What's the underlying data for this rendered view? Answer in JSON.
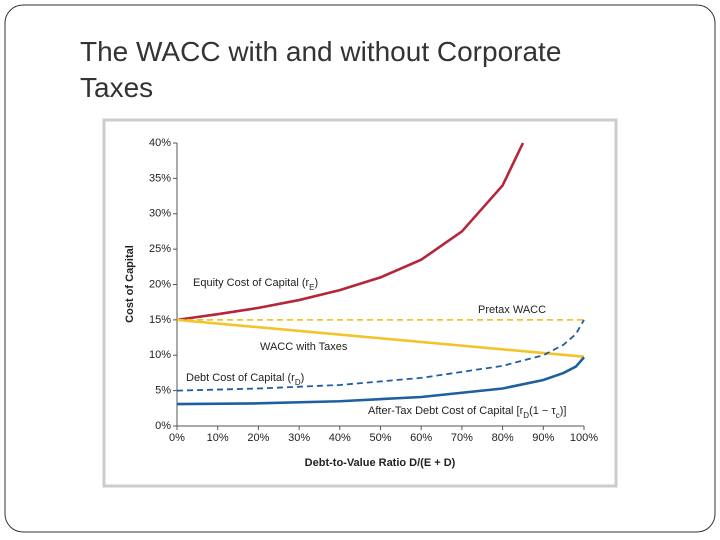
{
  "slide_title": "The WACC with and without Corporate Taxes",
  "chart_data": {
    "type": "line",
    "xlabel": "Debt-to-Value Ratio D/(E + D)",
    "ylabel": "Cost of Capital",
    "xlim": [
      0,
      100
    ],
    "xticks": [
      {
        "value": 0,
        "label": "0%"
      },
      {
        "value": 10,
        "label": "10%"
      },
      {
        "value": 20,
        "label": "20%"
      },
      {
        "value": 30,
        "label": "30%"
      },
      {
        "value": 40,
        "label": "40%"
      },
      {
        "value": 50,
        "label": "50%"
      },
      {
        "value": 60,
        "label": "60%"
      },
      {
        "value": 70,
        "label": "70%"
      },
      {
        "value": 80,
        "label": "80%"
      },
      {
        "value": 90,
        "label": "90%"
      },
      {
        "value": 100,
        "label": "100%"
      }
    ],
    "ylim": [
      0,
      40
    ],
    "yticks": [
      {
        "value": 0,
        "label": "0%"
      },
      {
        "value": 5,
        "label": "5%"
      },
      {
        "value": 10,
        "label": "10%"
      },
      {
        "value": 15,
        "label": "15%"
      },
      {
        "value": 20,
        "label": "20%"
      },
      {
        "value": 25,
        "label": "25%"
      },
      {
        "value": 30,
        "label": "30%"
      },
      {
        "value": 35,
        "label": "35%"
      },
      {
        "value": 40,
        "label": "40%"
      }
    ],
    "series": [
      {
        "color": "#b5263a",
        "dashed": false,
        "x": [
          0,
          10,
          20,
          30,
          40,
          50,
          60,
          70,
          80,
          85
        ],
        "values": [
          15,
          15.8,
          16.7,
          17.8,
          19.2,
          21,
          23.5,
          27.5,
          34,
          40
        ],
        "label": [
          {
            "text": "Equity Cost of Capital (r"
          },
          {
            "text": "E",
            "sub": true
          },
          {
            "text": ")"
          }
        ]
      },
      {
        "color": "#f2c42c",
        "dashed": true,
        "x": [
          0,
          100
        ],
        "values": [
          15,
          15
        ],
        "label": [
          {
            "text": "Pretax WACC"
          }
        ]
      },
      {
        "color": "#f2c42c",
        "dashed": false,
        "x": [
          0,
          100
        ],
        "values": [
          15,
          9.8
        ],
        "label": [
          {
            "text": "WACC with Taxes"
          }
        ]
      },
      {
        "color": "#1f5fa0",
        "dashed": true,
        "x": [
          0,
          20,
          40,
          60,
          80,
          90,
          95,
          98,
          100
        ],
        "values": [
          5,
          5.3,
          5.8,
          6.8,
          8.5,
          10,
          11.5,
          13,
          15
        ],
        "label": [
          {
            "text": "Debt Cost of Capital (r"
          },
          {
            "text": "D",
            "sub": true
          },
          {
            "text": ")"
          }
        ]
      },
      {
        "color": "#1f5fa0",
        "dashed": false,
        "x": [
          0,
          20,
          40,
          60,
          80,
          90,
          95,
          98,
          100
        ],
        "values": [
          3.1,
          3.2,
          3.5,
          4.1,
          5.3,
          6.5,
          7.5,
          8.4,
          9.7
        ],
        "label": [
          {
            "text": "After-Tax Debt Cost of Capital [r"
          },
          {
            "text": "D",
            "sub": true
          },
          {
            "text": "(1 − τ"
          },
          {
            "text": "c",
            "sub": true
          },
          {
            "text": ")]"
          }
        ]
      }
    ]
  }
}
